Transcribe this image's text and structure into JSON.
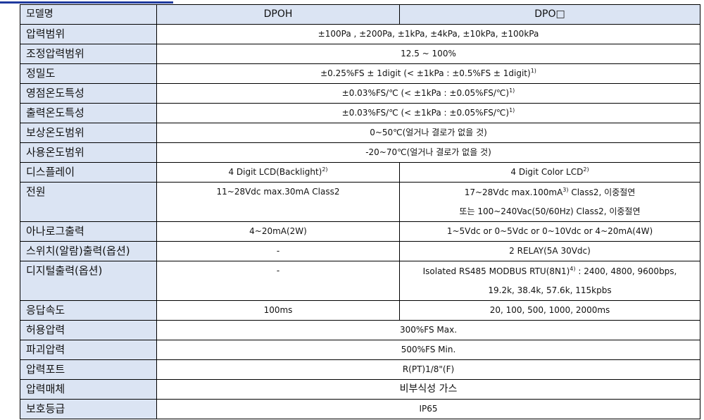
{
  "header": {
    "label": "모델명",
    "col1": "DPOH",
    "col2": "DPO□"
  },
  "rows": [
    {
      "label": "압력범위",
      "value": "±100Pa , ±200Pa, ±1kPa, ±4kPa, ±10kPa, ±100kPa"
    },
    {
      "label": "조정압력범위",
      "value": "12.5 ~ 100%"
    },
    {
      "label": "정밀도",
      "value": "±0.25%FS ± 1digit (< ±1kPa : ±0.5%FS ± 1digit)",
      "sup": "1)"
    },
    {
      "label": "영점온도특성",
      "value": "±0.03%FS/℃ (< ±1kPa : ±0.05%FS/℃)",
      "sup": "1)"
    },
    {
      "label": "출력온도특성",
      "value": "±0.03%FS/℃ (< ±1kPa : ±0.05%FS/℃)",
      "sup": "1)"
    },
    {
      "label": "보상온도범위",
      "value": "0~50℃(얼거나 결로가 없을 것)"
    },
    {
      "label": "사용온도범위",
      "value": "-20~70℃(얼거나 결로가 없을 것)"
    }
  ],
  "display": {
    "label": "디스플레이",
    "col1": "4 Digit LCD(Backlight)",
    "col1_sup": "2)",
    "col2": "4 Digit Color LCD",
    "col2_sup": "2)"
  },
  "power": {
    "label": "전원",
    "col1": "11~28Vdc max.30mA Class2",
    "col2_line1a": "17~28Vdc max.100mA",
    "col2_sup": "3)",
    "col2_line1b": " Class2, 이중절연",
    "col2_line2": "또는 100~240Vac(50/60Hz) Class2, 이중절연"
  },
  "analog": {
    "label": "아나로그출력",
    "col1": "4~20mA(2W)",
    "col2": "1~5Vdc or 0~5Vdc or 0~10Vdc or 4~20mA(4W)"
  },
  "switch": {
    "label": "스위치(알람)출력(옵션)",
    "col1": "-",
    "col2": "2 RELAY(5A 30Vdc)"
  },
  "digital": {
    "label": "디지털출력(옵션)",
    "col1": "-",
    "col2_line1a": "Isolated RS485 MODBUS RTU(8N1)",
    "col2_sup": "4)",
    "col2_line1b": " : 2400, 4800, 9600bps,",
    "col2_line2": "19.2k, 38.4k, 57.6k, 115kpbs"
  },
  "response": {
    "label": "응답속도",
    "col1": "100ms",
    "col2": "20, 100, 500, 1000, 2000ms"
  },
  "rows2": [
    {
      "label": "허용압력",
      "value": "300%FS Max."
    },
    {
      "label": "파괴압력",
      "value": "500%FS Min."
    },
    {
      "label": "압력포트",
      "value": "R(PT)1/8\"(F)"
    },
    {
      "label": "압력매체",
      "value": "비부식성 가스"
    },
    {
      "label": "보호등급",
      "value": "IP65"
    }
  ]
}
